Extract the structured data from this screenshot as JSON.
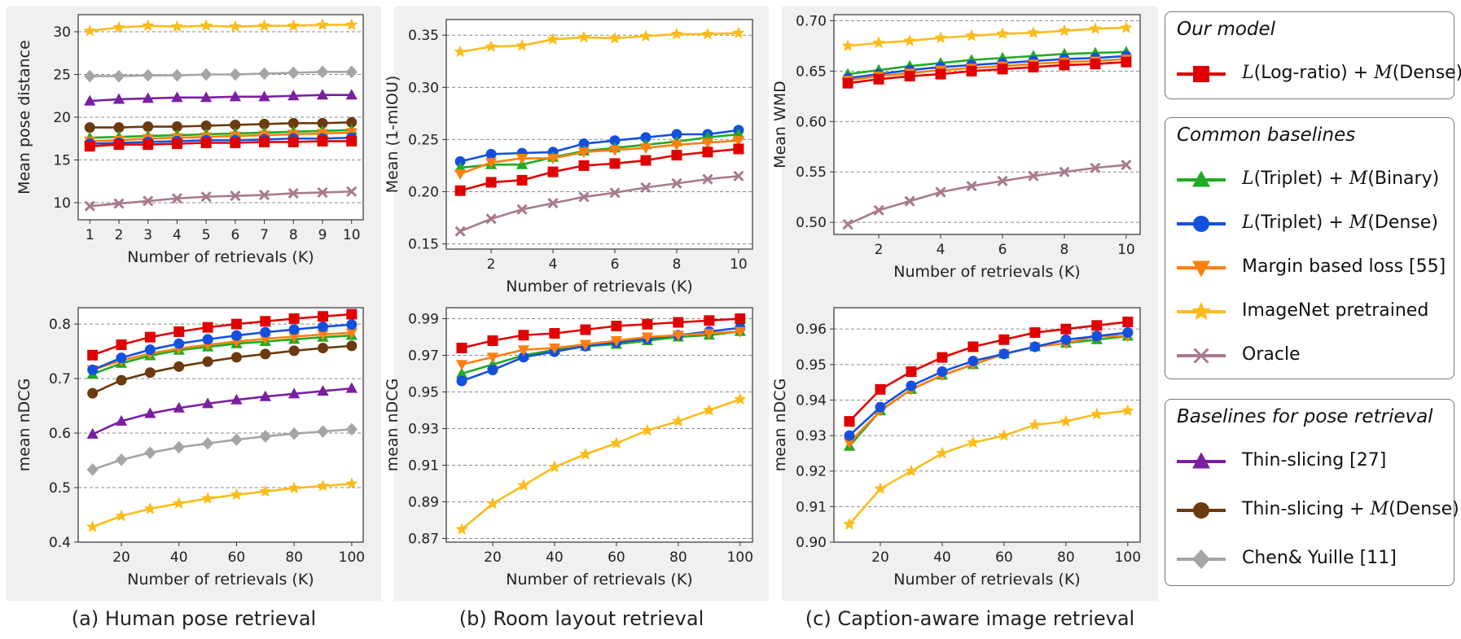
{
  "captions": [
    "(a) Human pose retrieval",
    "(b) Room layout retrieval",
    "(c) Caption-aware image retrieval"
  ],
  "series_styles": {
    "ours": {
      "color": "#e00000",
      "marker": "square"
    },
    "triplet_binary": {
      "color": "#22aa22",
      "marker": "triangle-up"
    },
    "triplet_dense": {
      "color": "#1450e0",
      "marker": "circle"
    },
    "margin": {
      "color": "#ff7f0e",
      "marker": "triangle-down"
    },
    "imagenet": {
      "color": "#fbbc1c",
      "marker": "star"
    },
    "oracle": {
      "color": "#a87a8e",
      "marker": "x"
    },
    "thin": {
      "color": "#7a1fa2",
      "marker": "triangle-up"
    },
    "thin_dense": {
      "color": "#6b3a0e",
      "marker": "circle"
    },
    "chen": {
      "color": "#a5a5a5",
      "marker": "diamond"
    }
  },
  "legend": {
    "groups": [
      {
        "title": "Our model",
        "items": [
          {
            "key": "ours",
            "label_main": "L",
            "label_a": "(Log-ratio) + ",
            "label_m": "M",
            "label_b": "(Dense)"
          }
        ]
      },
      {
        "title": "Common baselines",
        "items": [
          {
            "key": "triplet_binary",
            "label_main": "L",
            "label_a": "(Triplet) + ",
            "label_m": "M",
            "label_b": "(Binary)"
          },
          {
            "key": "triplet_dense",
            "label_main": "L",
            "label_a": "(Triplet) + ",
            "label_m": "M",
            "label_b": "(Dense)"
          },
          {
            "key": "margin",
            "label_text": "Margin based loss [55]"
          },
          {
            "key": "imagenet",
            "label_text": "ImageNet pretrained"
          },
          {
            "key": "oracle",
            "label_text": "Oracle"
          }
        ]
      },
      {
        "title": "Baselines for pose retrieval",
        "items": [
          {
            "key": "thin",
            "label_text": "Thin-slicing [27]"
          },
          {
            "key": "thin_dense",
            "label_pre": "Thin-slicing + ",
            "label_m": "M",
            "label_b": "(Dense)"
          },
          {
            "key": "chen",
            "label_text": "Chen& Yuille [11]"
          }
        ]
      }
    ]
  },
  "chart_data": [
    {
      "type": "line",
      "id": "a-top",
      "xlabel": "Number of retrievals (K)",
      "ylabel": "Mean pose distance",
      "x": [
        1,
        2,
        3,
        4,
        5,
        6,
        7,
        8,
        9,
        10
      ],
      "xlim": [
        0.6,
        10.4
      ],
      "ylim": [
        8,
        32
      ],
      "xticks": [
        1,
        2,
        3,
        4,
        5,
        6,
        7,
        8,
        9,
        10
      ],
      "yticks": [
        10,
        15,
        20,
        25,
        30
      ],
      "series": [
        {
          "key": "imagenet",
          "values": [
            30.1,
            30.5,
            30.7,
            30.6,
            30.7,
            30.6,
            30.7,
            30.7,
            30.8,
            30.8
          ]
        },
        {
          "key": "chen",
          "values": [
            24.8,
            24.8,
            24.9,
            24.9,
            25.0,
            25.0,
            25.1,
            25.2,
            25.3,
            25.3
          ]
        },
        {
          "key": "thin",
          "values": [
            21.9,
            22.1,
            22.2,
            22.3,
            22.3,
            22.4,
            22.4,
            22.5,
            22.6,
            22.6
          ]
        },
        {
          "key": "thin_dense",
          "values": [
            18.8,
            18.8,
            18.9,
            18.9,
            19.0,
            19.1,
            19.2,
            19.3,
            19.3,
            19.4
          ]
        },
        {
          "key": "triplet_binary",
          "values": [
            17.6,
            17.7,
            17.8,
            17.9,
            18.0,
            18.1,
            18.2,
            18.3,
            18.4,
            18.5
          ]
        },
        {
          "key": "margin",
          "values": [
            17.2,
            17.3,
            17.5,
            17.6,
            17.7,
            17.8,
            17.9,
            18.0,
            18.1,
            18.2
          ]
        },
        {
          "key": "triplet_dense",
          "values": [
            16.9,
            17.0,
            17.1,
            17.2,
            17.3,
            17.3,
            17.4,
            17.5,
            17.5,
            17.6
          ]
        },
        {
          "key": "ours",
          "values": [
            16.6,
            16.8,
            16.8,
            16.9,
            17.0,
            17.0,
            17.1,
            17.1,
            17.2,
            17.2
          ]
        },
        {
          "key": "oracle",
          "values": [
            9.6,
            9.9,
            10.2,
            10.5,
            10.7,
            10.8,
            10.9,
            11.1,
            11.2,
            11.3
          ]
        }
      ]
    },
    {
      "type": "line",
      "id": "a-bottom",
      "xlabel": "Number of retrievals (K)",
      "ylabel": "mean nDCG",
      "x": [
        10,
        20,
        30,
        40,
        50,
        60,
        70,
        80,
        90,
        100
      ],
      "xlim": [
        5,
        104
      ],
      "ylim": [
        0.4,
        0.83
      ],
      "xticks": [
        20,
        40,
        60,
        80,
        100
      ],
      "yticks": [
        0.4,
        0.5,
        0.6,
        0.7,
        0.8
      ],
      "series": [
        {
          "key": "imagenet",
          "values": [
            0.428,
            0.448,
            0.461,
            0.471,
            0.48,
            0.487,
            0.493,
            0.499,
            0.503,
            0.507
          ]
        },
        {
          "key": "chen",
          "values": [
            0.533,
            0.551,
            0.564,
            0.574,
            0.581,
            0.588,
            0.594,
            0.599,
            0.603,
            0.607
          ]
        },
        {
          "key": "thin",
          "values": [
            0.598,
            0.622,
            0.636,
            0.646,
            0.654,
            0.661,
            0.667,
            0.672,
            0.677,
            0.682
          ]
        },
        {
          "key": "thin_dense",
          "values": [
            0.673,
            0.697,
            0.711,
            0.722,
            0.731,
            0.739,
            0.745,
            0.751,
            0.756,
            0.76
          ]
        },
        {
          "key": "triplet_binary",
          "values": [
            0.708,
            0.728,
            0.742,
            0.752,
            0.758,
            0.764,
            0.768,
            0.772,
            0.776,
            0.779
          ]
        },
        {
          "key": "margin",
          "values": [
            0.716,
            0.733,
            0.746,
            0.755,
            0.762,
            0.768,
            0.773,
            0.777,
            0.781,
            0.784
          ]
        },
        {
          "key": "triplet_dense",
          "values": [
            0.716,
            0.738,
            0.753,
            0.764,
            0.772,
            0.779,
            0.785,
            0.79,
            0.795,
            0.799
          ]
        },
        {
          "key": "ours",
          "values": [
            0.743,
            0.762,
            0.776,
            0.786,
            0.794,
            0.8,
            0.805,
            0.81,
            0.814,
            0.818
          ]
        }
      ]
    },
    {
      "type": "line",
      "id": "b-top",
      "xlabel": "Number of retrievals (K)",
      "ylabel": "Mean (1-mIOU)",
      "x": [
        1,
        2,
        3,
        4,
        5,
        6,
        7,
        8,
        9,
        10
      ],
      "xlim": [
        0.55,
        10.45
      ],
      "ylim": [
        0.145,
        0.365
      ],
      "xticks": [
        2,
        4,
        6,
        8,
        10
      ],
      "yticks": [
        0.15,
        0.2,
        0.25,
        0.3,
        0.35
      ],
      "series": [
        {
          "key": "imagenet",
          "values": [
            0.334,
            0.339,
            0.34,
            0.346,
            0.348,
            0.347,
            0.349,
            0.351,
            0.351,
            0.352
          ]
        },
        {
          "key": "triplet_dense",
          "values": [
            0.229,
            0.236,
            0.237,
            0.238,
            0.246,
            0.249,
            0.252,
            0.255,
            0.255,
            0.259
          ]
        },
        {
          "key": "triplet_binary",
          "values": [
            0.223,
            0.226,
            0.226,
            0.233,
            0.239,
            0.242,
            0.245,
            0.248,
            0.252,
            0.255
          ]
        },
        {
          "key": "margin",
          "values": [
            0.217,
            0.228,
            0.232,
            0.232,
            0.238,
            0.24,
            0.242,
            0.245,
            0.247,
            0.249
          ]
        },
        {
          "key": "ours",
          "values": [
            0.201,
            0.209,
            0.211,
            0.219,
            0.225,
            0.227,
            0.23,
            0.235,
            0.238,
            0.241
          ]
        },
        {
          "key": "oracle",
          "values": [
            0.162,
            0.174,
            0.183,
            0.189,
            0.195,
            0.199,
            0.204,
            0.208,
            0.212,
            0.215
          ]
        }
      ]
    },
    {
      "type": "line",
      "id": "b-bottom",
      "xlabel": "Number of retrievals (K)",
      "ylabel": "mean nDCG",
      "x": [
        10,
        20,
        30,
        40,
        50,
        60,
        70,
        80,
        90,
        100
      ],
      "xlim": [
        5,
        104
      ],
      "ylim": [
        0.868,
        0.996
      ],
      "xticks": [
        20,
        40,
        60,
        80,
        100
      ],
      "yticks": [
        0.87,
        0.89,
        0.91,
        0.93,
        0.95,
        0.97,
        0.99
      ],
      "series": [
        {
          "key": "imagenet",
          "values": [
            0.875,
            0.889,
            0.899,
            0.909,
            0.916,
            0.922,
            0.929,
            0.934,
            0.94,
            0.946
          ]
        },
        {
          "key": "triplet_binary",
          "values": [
            0.96,
            0.965,
            0.97,
            0.973,
            0.975,
            0.976,
            0.978,
            0.98,
            0.981,
            0.983
          ]
        },
        {
          "key": "triplet_dense",
          "values": [
            0.956,
            0.962,
            0.969,
            0.972,
            0.975,
            0.977,
            0.979,
            0.981,
            0.983,
            0.985
          ]
        },
        {
          "key": "margin",
          "values": [
            0.965,
            0.969,
            0.973,
            0.974,
            0.976,
            0.978,
            0.98,
            0.981,
            0.982,
            0.983
          ]
        },
        {
          "key": "ours",
          "values": [
            0.974,
            0.978,
            0.981,
            0.982,
            0.984,
            0.986,
            0.987,
            0.988,
            0.989,
            0.99
          ]
        }
      ]
    },
    {
      "type": "line",
      "id": "c-top",
      "xlabel": "Number of retrievals (K)",
      "ylabel": "Mean WMD",
      "x": [
        1,
        2,
        3,
        4,
        5,
        6,
        7,
        8,
        9,
        10
      ],
      "xlim": [
        0.55,
        10.45
      ],
      "ylim": [
        0.488,
        0.706
      ],
      "xticks": [
        2,
        4,
        6,
        8,
        10
      ],
      "yticks": [
        0.5,
        0.55,
        0.6,
        0.65,
        0.7
      ],
      "series": [
        {
          "key": "imagenet",
          "values": [
            0.675,
            0.678,
            0.68,
            0.683,
            0.685,
            0.687,
            0.688,
            0.69,
            0.692,
            0.693
          ]
        },
        {
          "key": "triplet_binary",
          "values": [
            0.647,
            0.651,
            0.655,
            0.658,
            0.661,
            0.663,
            0.665,
            0.667,
            0.668,
            0.669
          ]
        },
        {
          "key": "triplet_dense",
          "values": [
            0.643,
            0.647,
            0.651,
            0.654,
            0.656,
            0.658,
            0.66,
            0.662,
            0.663,
            0.665
          ]
        },
        {
          "key": "margin",
          "values": [
            0.641,
            0.645,
            0.648,
            0.651,
            0.653,
            0.655,
            0.657,
            0.659,
            0.66,
            0.662
          ]
        },
        {
          "key": "ours",
          "values": [
            0.638,
            0.642,
            0.645,
            0.647,
            0.65,
            0.652,
            0.654,
            0.656,
            0.657,
            0.659
          ]
        },
        {
          "key": "oracle",
          "values": [
            0.498,
            0.512,
            0.521,
            0.53,
            0.536,
            0.541,
            0.546,
            0.55,
            0.554,
            0.557
          ]
        }
      ]
    },
    {
      "type": "line",
      "id": "c-bottom",
      "xlabel": "Number of retrievals (K)",
      "ylabel": "mean nDCG",
      "x": [
        10,
        20,
        30,
        40,
        50,
        60,
        70,
        80,
        90,
        100
      ],
      "xlim": [
        5,
        104
      ],
      "ylim": [
        0.9,
        0.966
      ],
      "xticks": [
        20,
        40,
        60,
        80,
        100
      ],
      "yticks": [
        0.9,
        0.91,
        0.92,
        0.93,
        0.94,
        0.95,
        0.96
      ],
      "series": [
        {
          "key": "imagenet",
          "values": [
            0.905,
            0.915,
            0.92,
            0.925,
            0.928,
            0.93,
            0.933,
            0.934,
            0.936,
            0.937
          ]
        },
        {
          "key": "triplet_binary",
          "values": [
            0.927,
            0.937,
            0.943,
            0.947,
            0.95,
            0.953,
            0.955,
            0.956,
            0.957,
            0.958
          ]
        },
        {
          "key": "margin",
          "values": [
            0.928,
            0.937,
            0.943,
            0.947,
            0.95,
            0.953,
            0.955,
            0.956,
            0.958,
            0.958
          ]
        },
        {
          "key": "triplet_dense",
          "values": [
            0.93,
            0.938,
            0.944,
            0.948,
            0.951,
            0.953,
            0.955,
            0.957,
            0.958,
            0.959
          ]
        },
        {
          "key": "ours",
          "values": [
            0.934,
            0.943,
            0.948,
            0.952,
            0.955,
            0.957,
            0.959,
            0.96,
            0.961,
            0.962
          ]
        }
      ]
    }
  ]
}
